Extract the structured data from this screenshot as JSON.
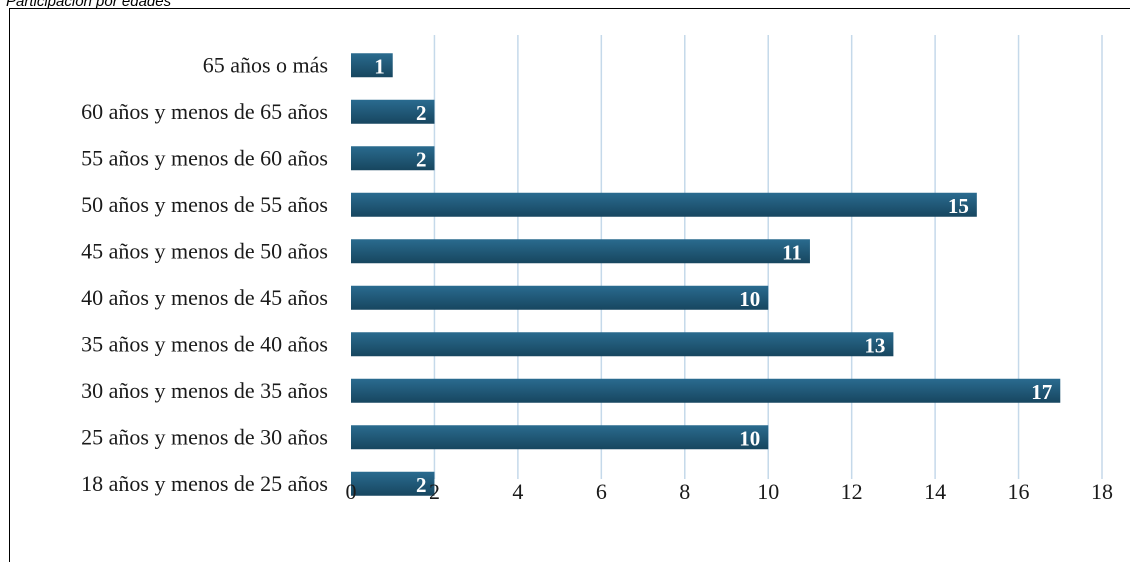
{
  "caption": "Participación por edades",
  "chart_data": {
    "type": "bar",
    "orientation": "horizontal",
    "categories": [
      "18 años y menos de 25 años",
      "25 años y menos de 30 años",
      "30 años y menos de 35 años",
      "35 años y menos de 40 años",
      "40 años y menos de 45 años",
      "45 años y menos de 50 años",
      "50 años y menos de 55 años",
      "55 años y menos de 60 años",
      "60 años y menos de 65 años",
      "65 años o más"
    ],
    "values": [
      2,
      10,
      17,
      13,
      10,
      11,
      15,
      2,
      2,
      1
    ],
    "xlim": [
      0,
      18
    ],
    "x_ticks": [
      0,
      2,
      4,
      6,
      8,
      10,
      12,
      14,
      16,
      18
    ],
    "grid": "vertical",
    "data_labels": true,
    "legend": "none",
    "colors": {
      "bar_top": "#2a6b8f",
      "bar_bottom": "#17465f",
      "grid": "#c5d9ea",
      "label_text": "#ffffff"
    }
  }
}
